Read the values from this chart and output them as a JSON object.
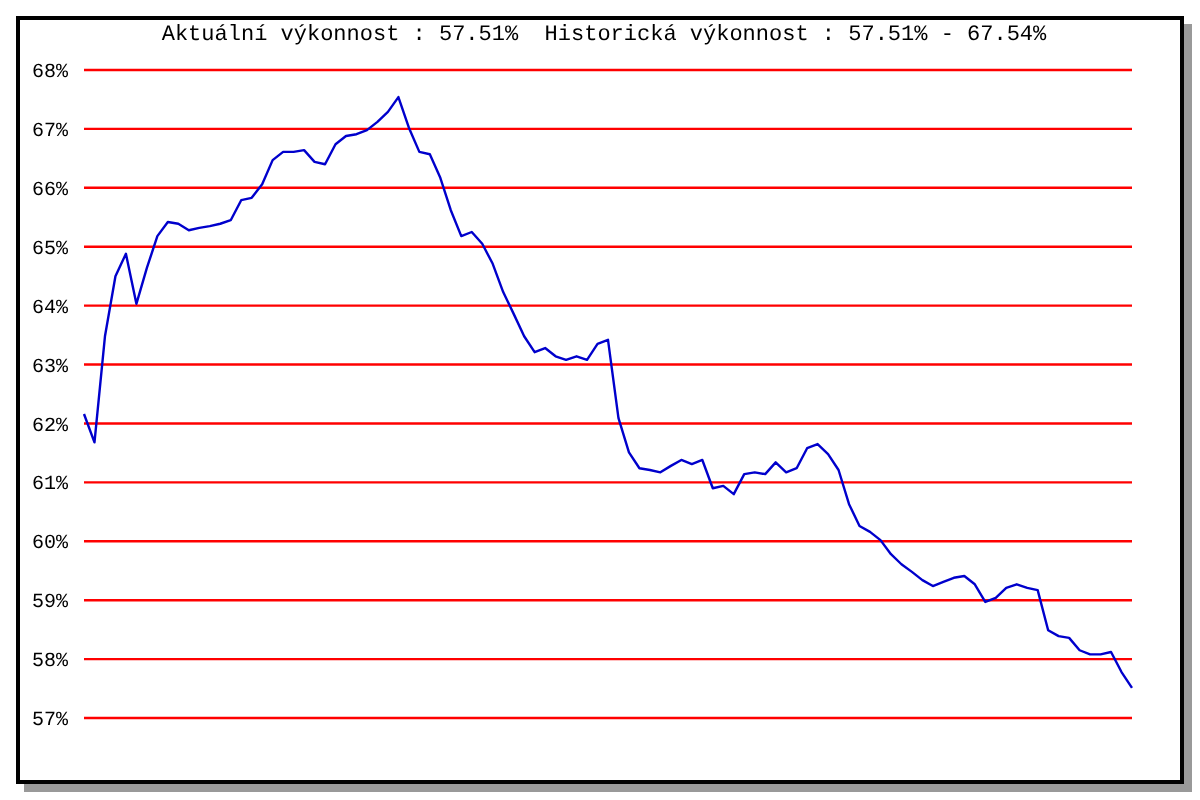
{
  "chart_data": {
    "type": "line",
    "title": "Aktuální výkonnost : 57.51%  Historická výkonnost : 57.51% - 67.54%",
    "categories": [
      null,
      null,
      null,
      null,
      null,
      null,
      null,
      null,
      null,
      null,
      null,
      null,
      null,
      null,
      null,
      null,
      null,
      null,
      null,
      null,
      null,
      null,
      null,
      null,
      null,
      null,
      null,
      null,
      null,
      null,
      null,
      null,
      null,
      null,
      null,
      null,
      null,
      null,
      null,
      null,
      null,
      null,
      null,
      null,
      null,
      null,
      null,
      null,
      null,
      null,
      null,
      null,
      null,
      null,
      null,
      null,
      null,
      null,
      null,
      null,
      null,
      null,
      null,
      null,
      null,
      null,
      null,
      null,
      null,
      null,
      null,
      null,
      null,
      null,
      null,
      null,
      null,
      null,
      null,
      null,
      null,
      null,
      null,
      null,
      null,
      null,
      null,
      null,
      null,
      null,
      null,
      null,
      null,
      null,
      null,
      null,
      null,
      null,
      null,
      null,
      null
    ],
    "values": [
      62.16,
      61.68,
      63.48,
      64.5,
      64.88,
      64.03,
      64.64,
      65.18,
      65.42,
      65.39,
      65.28,
      65.32,
      65.35,
      65.39,
      65.45,
      65.79,
      65.83,
      66.06,
      66.47,
      66.61,
      66.61,
      66.64,
      66.44,
      66.4,
      66.74,
      66.88,
      66.91,
      66.98,
      67.12,
      67.29,
      67.54,
      67.02,
      66.61,
      66.57,
      66.17,
      65.62,
      65.18,
      65.25,
      65.05,
      64.71,
      64.23,
      63.86,
      63.48,
      63.21,
      63.28,
      63.14,
      63.08,
      63.14,
      63.08,
      63.35,
      63.42,
      62.09,
      61.51,
      61.24,
      61.21,
      61.17,
      61.28,
      61.38,
      61.31,
      61.38,
      60.9,
      60.94,
      60.8,
      61.14,
      61.17,
      61.14,
      61.34,
      61.17,
      61.24,
      61.58,
      61.65,
      61.48,
      61.21,
      60.63,
      60.26,
      60.16,
      60.02,
      59.78,
      59.61,
      59.48,
      59.34,
      59.24,
      59.31,
      59.38,
      59.41,
      59.27,
      58.97,
      59.04,
      59.21,
      59.27,
      59.21,
      59.17,
      58.49,
      58.39,
      58.36,
      58.15,
      58.08,
      58.08,
      58.12,
      57.78,
      57.51
    ],
    "color": "#0000cc",
    "ylim": [
      57,
      68
    ],
    "yticks": [
      {
        "value": 57,
        "label": "57%"
      },
      {
        "value": 58,
        "label": "58%"
      },
      {
        "value": 59,
        "label": "59%"
      },
      {
        "value": 60,
        "label": "60%"
      },
      {
        "value": 61,
        "label": "61%"
      },
      {
        "value": 62,
        "label": "62%"
      },
      {
        "value": 63,
        "label": "63%"
      },
      {
        "value": 64,
        "label": "64%"
      },
      {
        "value": 65,
        "label": "65%"
      },
      {
        "value": 66,
        "label": "66%"
      },
      {
        "value": 67,
        "label": "67%"
      },
      {
        "value": 68,
        "label": "68%"
      }
    ],
    "grid": "y",
    "tick_labels": "y",
    "marker": "none",
    "line_style": "solid"
  }
}
